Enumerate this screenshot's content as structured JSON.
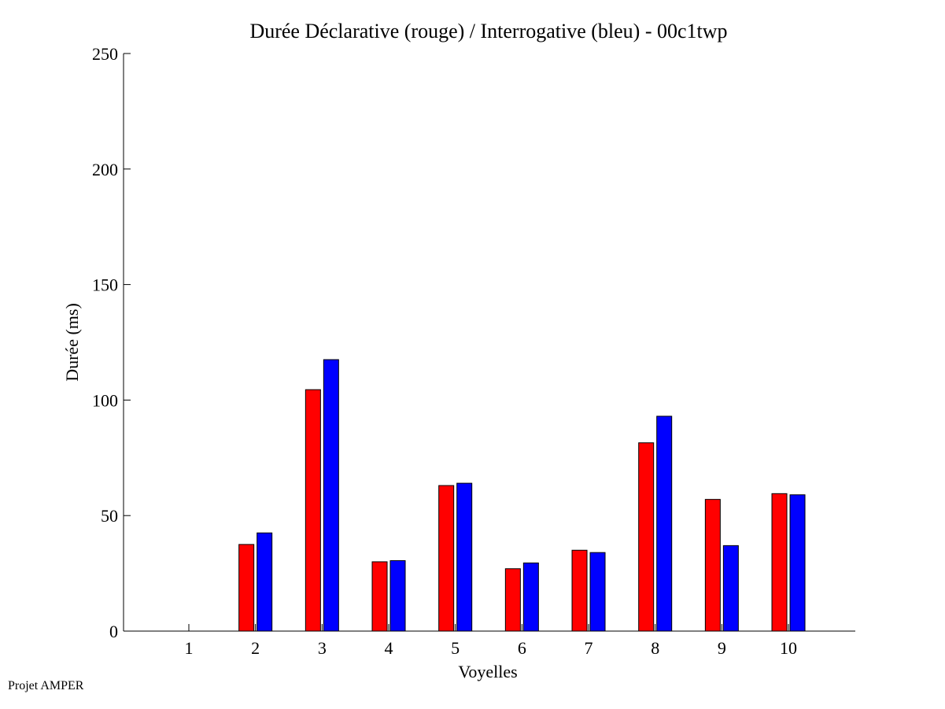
{
  "footer": "Projet AMPER",
  "chart_data": {
    "type": "bar",
    "title": "Durée Déclarative (rouge) / Interrogative (bleu) - 00c1twp",
    "xlabel": "Voyelles",
    "ylabel": "Durée (ms)",
    "ylim": [
      0,
      250
    ],
    "yticks": [
      "0",
      "50",
      "100",
      "150",
      "200",
      "250"
    ],
    "categories": [
      "1",
      "2",
      "3",
      "4",
      "5",
      "6",
      "7",
      "8",
      "9",
      "10"
    ],
    "series": [
      {
        "color": "#ff0000",
        "values": [
          0,
          37.5,
          104.5,
          30,
          63,
          27,
          35,
          81.5,
          57,
          59.5
        ]
      },
      {
        "color": "#0000ff",
        "values": [
          0,
          42.5,
          117.5,
          30.5,
          64,
          29.5,
          34,
          93,
          37,
          59
        ]
      }
    ],
    "grid": false,
    "legend": "none"
  }
}
